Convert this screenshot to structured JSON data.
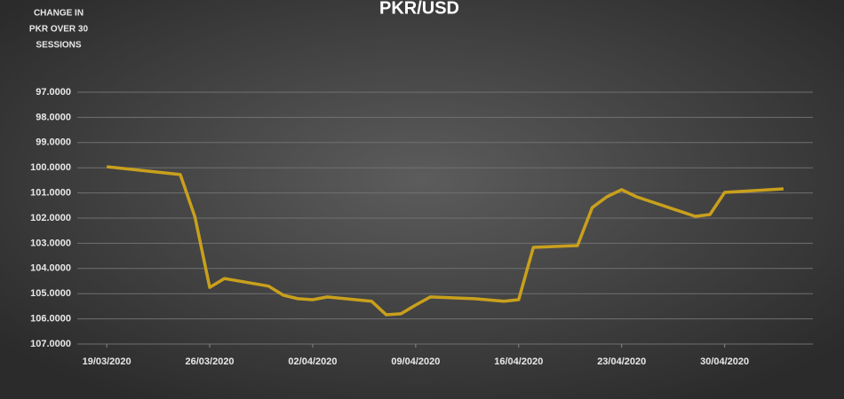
{
  "chart_data": {
    "type": "line",
    "title": "PKR/USD",
    "y_label_lines": [
      "CHANGE IN",
      "PKR OVER 30",
      "SESSIONS"
    ],
    "x": [
      "19/03/2020",
      "24/03/2020",
      "25/03/2020",
      "26/03/2020",
      "27/03/2020",
      "30/03/2020",
      "31/03/2020",
      "01/04/2020",
      "02/04/2020",
      "03/04/2020",
      "06/04/2020",
      "07/04/2020",
      "08/04/2020",
      "09/04/2020",
      "10/04/2020",
      "13/04/2020",
      "15/04/2020",
      "16/04/2020",
      "17/04/2020",
      "20/04/2020",
      "21/04/2020",
      "22/04/2020",
      "23/04/2020",
      "24/04/2020",
      "28/04/2020",
      "29/04/2020",
      "30/04/2020",
      "04/05/2020"
    ],
    "series": [
      {
        "name": "PKR/USD",
        "color": "#c9a01c",
        "values": [
          99.96,
          100.27,
          101.96,
          104.75,
          104.4,
          104.7,
          105.06,
          105.2,
          105.24,
          105.13,
          105.3,
          105.84,
          105.8,
          105.45,
          105.13,
          105.2,
          105.3,
          105.24,
          103.16,
          103.09,
          101.58,
          101.15,
          100.87,
          101.15,
          101.93,
          101.86,
          100.98,
          100.84
        ]
      }
    ],
    "xlim": [
      "17/03/2020",
      "06/05/2020"
    ],
    "xticks": [
      "19/03/2020",
      "26/03/2020",
      "02/04/2020",
      "09/04/2020",
      "16/04/2020",
      "23/04/2020",
      "30/04/2020"
    ],
    "ylim": [
      97,
      107
    ],
    "y_inverted": true,
    "yticks": [
      {
        "value": 97,
        "label": "97.0000"
      },
      {
        "value": 98,
        "label": "98.0000"
      },
      {
        "value": 99,
        "label": "99.0000"
      },
      {
        "value": 100,
        "label": "100.0000"
      },
      {
        "value": 101,
        "label": "101.0000"
      },
      {
        "value": 102,
        "label": "102.0000"
      },
      {
        "value": 103,
        "label": "103.0000"
      },
      {
        "value": 104,
        "label": "104.0000"
      },
      {
        "value": 105,
        "label": "105.0000"
      },
      {
        "value": 106,
        "label": "106.0000"
      },
      {
        "value": 107,
        "label": "107.0000"
      }
    ],
    "grid": true
  }
}
